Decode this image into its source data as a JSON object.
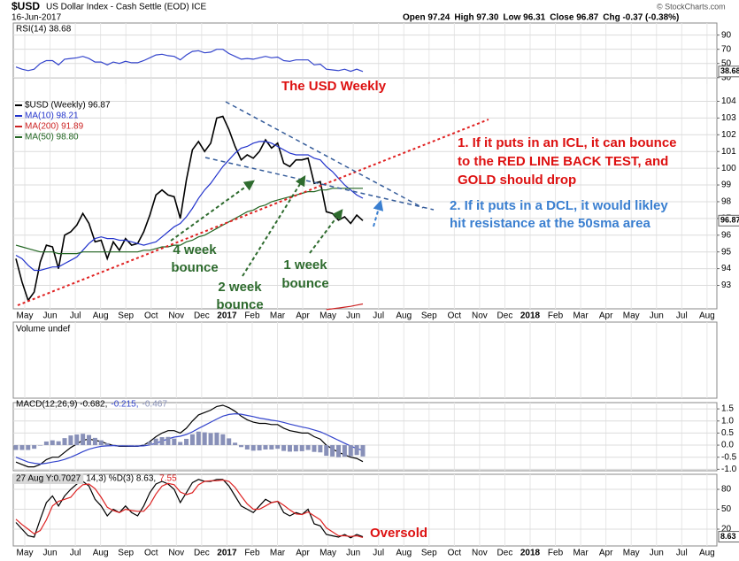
{
  "header": {
    "symbol": "$USD",
    "name": "US Dollar Index - Cash Settle (EOD) ICE",
    "date": "16-Jun-2017",
    "quote": [
      "Open 97.24",
      "High 97.30",
      "Low 96.31",
      "Close 96.87",
      "Chg -0.37 (-0.38%)"
    ],
    "brand": "© StockCharts.com"
  },
  "chart_data": [
    {
      "type": "line",
      "series": [
        {
          "name": "RSI(14) 38.68",
          "color": "#3344cc",
          "values": [
            45,
            42,
            40,
            42,
            50,
            54,
            54,
            48,
            56,
            57,
            58,
            60,
            57,
            52,
            52,
            48,
            52,
            50,
            53,
            51,
            51,
            54,
            58,
            62,
            63,
            61,
            60,
            55,
            62,
            67,
            68,
            65,
            66,
            70,
            70,
            64,
            60,
            56,
            57,
            56,
            58,
            60,
            58,
            59,
            54,
            53,
            55,
            55,
            55,
            48,
            49,
            42,
            41,
            40,
            42,
            39,
            42,
            38.68
          ]
        }
      ],
      "ylim": [
        21,
        107
      ],
      "yticks": [
        30,
        50,
        70,
        90
      ],
      "grid": true
    },
    {
      "type": "line",
      "title": "The USD Weekly",
      "months": [
        "May",
        "Jun",
        "Jul",
        "Aug",
        "Sep",
        "Oct",
        "Nov",
        "Dec",
        "2017",
        "Feb",
        "Mar",
        "Apr",
        "May",
        "Jun",
        "Jul",
        "Aug",
        "Sep",
        "Oct",
        "Nov",
        "Dec",
        "2018",
        "Feb",
        "Mar",
        "Apr",
        "May",
        "Jun",
        "Jul",
        "Aug"
      ],
      "series": [
        {
          "name": "$USD (Weekly) 96.87",
          "color": "#000000",
          "values": [
            94.6,
            93.2,
            92.1,
            92.6,
            94.4,
            95.4,
            95.3,
            94.0,
            96.0,
            96.2,
            96.6,
            97.3,
            96.7,
            95.6,
            95.7,
            94.6,
            95.6,
            95.1,
            95.8,
            95.4,
            95.5,
            96.2,
            97.2,
            98.4,
            98.7,
            98.4,
            98.3,
            97.0,
            99.3,
            101.1,
            101.6,
            101.0,
            101.5,
            103.0,
            103.1,
            102.3,
            101.3,
            100.5,
            100.8,
            100.6,
            101.0,
            101.7,
            101.2,
            101.5,
            100.3,
            100.1,
            100.5,
            100.5,
            100.6,
            99.1,
            99.2,
            97.4,
            97.3,
            96.9,
            97.1,
            96.7,
            97.2,
            96.87
          ]
        },
        {
          "name": "MA(10) 98.21",
          "color": "#2233cc",
          "values": [
            94.8,
            94.6,
            94.2,
            93.9,
            93.9,
            94.0,
            94.1,
            94.1,
            94.3,
            94.5,
            94.7,
            95.1,
            95.5,
            95.8,
            95.9,
            95.8,
            95.8,
            95.7,
            95.7,
            95.6,
            95.5,
            95.4,
            95.5,
            95.6,
            95.9,
            96.2,
            96.5,
            96.7,
            97.1,
            97.6,
            98.2,
            98.7,
            99.1,
            99.6,
            100.1,
            100.5,
            100.9,
            101.2,
            101.3,
            101.5,
            101.6,
            101.6,
            101.5,
            101.3,
            101.1,
            100.9,
            100.8,
            100.8,
            100.8,
            100.6,
            100.5,
            100.1,
            99.8,
            99.4,
            99.0,
            98.7,
            98.4,
            98.21
          ]
        },
        {
          "name": "MA(200) 91.89",
          "color": "#cc2222",
          "values": [
            null,
            null,
            null,
            null,
            null,
            null,
            null,
            null,
            null,
            null,
            null,
            null,
            null,
            null,
            null,
            null,
            null,
            null,
            null,
            null,
            null,
            null,
            null,
            null,
            null,
            null,
            null,
            null,
            null,
            null,
            null,
            null,
            null,
            null,
            null,
            null,
            null,
            null,
            null,
            null,
            null,
            null,
            null,
            null,
            null,
            null,
            null,
            null,
            null,
            null,
            null,
            91.55,
            91.6,
            91.65,
            91.7,
            91.75,
            91.82,
            91.89
          ]
        },
        {
          "name": "MA(50) 98.80",
          "color": "#226622",
          "values": [
            95.4,
            95.3,
            95.2,
            95.1,
            95.0,
            95.0,
            95.0,
            94.9,
            94.9,
            94.9,
            94.9,
            95.0,
            95.0,
            95.0,
            95.0,
            95.0,
            95.0,
            95.0,
            95.0,
            95.0,
            95.0,
            95.1,
            95.1,
            95.2,
            95.3,
            95.3,
            95.4,
            95.4,
            95.6,
            95.7,
            95.9,
            96.0,
            96.2,
            96.4,
            96.6,
            96.8,
            97.0,
            97.2,
            97.4,
            97.5,
            97.7,
            97.8,
            98.0,
            98.1,
            98.2,
            98.3,
            98.4,
            98.5,
            98.6,
            98.6,
            98.7,
            98.7,
            98.8,
            98.8,
            98.8,
            98.8,
            98.8,
            98.8
          ]
        }
      ],
      "ylim": [
        91.6,
        105.4
      ],
      "yticks": [
        93,
        94,
        95,
        96,
        97,
        98,
        99,
        100,
        101,
        102,
        103,
        104
      ],
      "grid": true,
      "annotations": {
        "icl": [
          "1. If it puts in an ICL, it can bounce",
          "to the RED LINE BACK TEST, and",
          "GOLD should drop"
        ],
        "dcl": [
          "2. If it puts in a DCL, it would likley",
          "hit resistance at the 50sma area"
        ],
        "bounce4": [
          "4 week",
          "bounce"
        ],
        "bounce2": [
          "2 week",
          "bounce"
        ],
        "bounce1": [
          "1 week",
          "bounce"
        ]
      }
    },
    {
      "type": "bar",
      "title": "Volume undef"
    },
    {
      "type": "line",
      "series": [
        {
          "name": "MACD(12,26,9) -0.682,",
          "color": "#000000",
          "values": [
            -0.7,
            -0.8,
            -0.9,
            -0.9,
            -0.8,
            -0.6,
            -0.5,
            -0.5,
            -0.3,
            -0.1,
            0.05,
            0.2,
            0.25,
            0.2,
            0.15,
            0.05,
            0.0,
            -0.05,
            -0.05,
            -0.05,
            -0.05,
            0.0,
            0.15,
            0.35,
            0.5,
            0.6,
            0.6,
            0.5,
            0.7,
            1.0,
            1.25,
            1.35,
            1.45,
            1.6,
            1.65,
            1.55,
            1.4,
            1.2,
            1.05,
            0.95,
            0.9,
            0.9,
            0.85,
            0.85,
            0.7,
            0.6,
            0.55,
            0.5,
            0.5,
            0.35,
            0.25,
            0.0,
            -0.15,
            -0.3,
            -0.4,
            -0.5,
            -0.55,
            -0.682
          ]
        },
        {
          "name": "-0.215,",
          "color": "#3344cc",
          "values": [
            -0.5,
            -0.6,
            -0.7,
            -0.75,
            -0.78,
            -0.75,
            -0.7,
            -0.66,
            -0.59,
            -0.5,
            -0.39,
            -0.27,
            -0.17,
            -0.1,
            -0.05,
            -0.03,
            -0.02,
            -0.03,
            -0.03,
            -0.04,
            -0.04,
            -0.03,
            0.01,
            0.08,
            0.17,
            0.26,
            0.33,
            0.37,
            0.44,
            0.55,
            0.69,
            0.82,
            0.95,
            1.08,
            1.2,
            1.27,
            1.3,
            1.28,
            1.23,
            1.18,
            1.12,
            1.08,
            1.03,
            1.0,
            0.94,
            0.87,
            0.81,
            0.75,
            0.7,
            0.63,
            0.55,
            0.44,
            0.32,
            0.2,
            0.08,
            -0.04,
            -0.14,
            -0.215
          ]
        },
        {
          "name": "-0.467",
          "color": "#8890b8",
          "type": "bar",
          "values": [
            -0.2,
            -0.2,
            -0.2,
            -0.15,
            -0.02,
            0.15,
            0.2,
            0.16,
            0.29,
            0.4,
            0.44,
            0.47,
            0.42,
            0.3,
            0.2,
            0.08,
            0.02,
            -0.02,
            -0.02,
            -0.01,
            -0.01,
            0.03,
            0.14,
            0.27,
            0.33,
            0.34,
            0.27,
            0.13,
            0.26,
            0.45,
            0.56,
            0.53,
            0.5,
            0.52,
            0.45,
            0.28,
            0.1,
            -0.08,
            -0.18,
            -0.23,
            -0.22,
            -0.18,
            -0.18,
            -0.15,
            -0.24,
            -0.27,
            -0.26,
            -0.25,
            -0.2,
            -0.28,
            -0.3,
            -0.44,
            -0.47,
            -0.5,
            -0.48,
            -0.46,
            -0.41,
            -0.467
          ]
        }
      ],
      "ylim": [
        -1.06,
        1.76
      ],
      "yticks": [
        {
          "value": -1,
          "label": "-1.0"
        },
        -0.5,
        {
          "value": 0,
          "label": "0.0"
        },
        0.5,
        {
          "value": 1,
          "label": "1.0"
        },
        1.5
      ],
      "grid": true
    },
    {
      "type": "line",
      "tag": "27 Aug Y:0.7027",
      "note": "Oversold",
      "series": [
        {
          "name": "14,3) %D(3) 8.63,",
          "color": "#000000",
          "values": [
            30,
            20,
            10,
            8,
            35,
            60,
            70,
            55,
            70,
            80,
            88,
            92,
            85,
            65,
            55,
            40,
            50,
            45,
            55,
            45,
            40,
            55,
            75,
            88,
            92,
            88,
            80,
            60,
            75,
            90,
            95,
            92,
            92,
            95,
            95,
            85,
            70,
            55,
            50,
            45,
            55,
            65,
            60,
            62,
            45,
            40,
            45,
            42,
            50,
            28,
            25,
            12,
            10,
            8,
            12,
            7,
            12,
            8.63
          ]
        },
        {
          "name": "7.55",
          "color": "#dd2222",
          "values": [
            35,
            27,
            20,
            13,
            18,
            34,
            55,
            62,
            65,
            68,
            79,
            87,
            88,
            81,
            68,
            53,
            48,
            45,
            50,
            48,
            47,
            47,
            57,
            73,
            85,
            89,
            87,
            76,
            72,
            75,
            87,
            92,
            93,
            93,
            94,
            92,
            83,
            70,
            58,
            50,
            50,
            55,
            60,
            62,
            56,
            49,
            43,
            42,
            46,
            40,
            34,
            22,
            16,
            10,
            10,
            9,
            10,
            7.55
          ]
        }
      ],
      "ylim": [
        -5.3,
        102.7
      ],
      "yticks": [
        20,
        50,
        80
      ],
      "grid": true
    }
  ]
}
